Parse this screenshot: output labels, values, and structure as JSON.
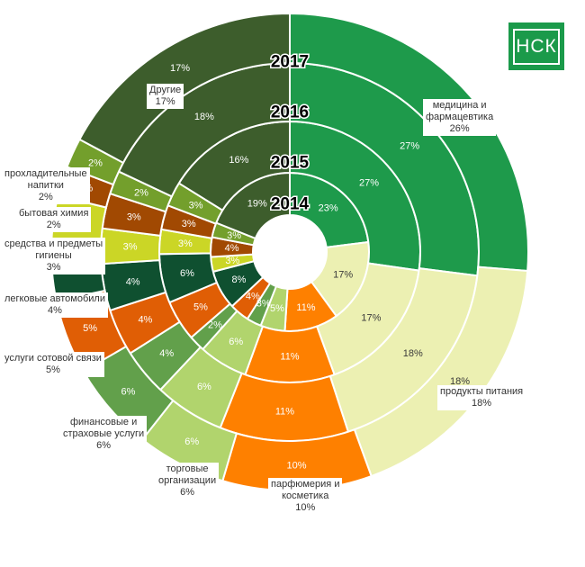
{
  "logo": {
    "text": "НСК"
  },
  "chart_data": {
    "type": "sunburst",
    "title": "",
    "years": [
      "2014",
      "2015",
      "2016",
      "2017"
    ],
    "categories": [
      {
        "name": "медицина и фармацевтика",
        "color": "#1e9a4b",
        "text": "light",
        "values": [
          23,
          27,
          27,
          26
        ]
      },
      {
        "name": "продукты питания",
        "color": "#ecf0b2",
        "text": "dark",
        "values": [
          17,
          17,
          18,
          18
        ]
      },
      {
        "name": "парфюмерия и косметика",
        "color": "#fe8000",
        "text": "light",
        "values": [
          11,
          11,
          11,
          10
        ]
      },
      {
        "name": "торговые организации",
        "color": "#b1d46d",
        "text": "light",
        "values": [
          5,
          6,
          6,
          6
        ]
      },
      {
        "name": "финансовые и страховые услуги",
        "color": "#62a04b",
        "text": "light",
        "values": [
          3,
          2,
          4,
          6
        ]
      },
      {
        "name": "услуги сотовой связи",
        "color": "#e05e05",
        "text": "light",
        "values": [
          4,
          5,
          4,
          5
        ]
      },
      {
        "name": "легковые автомобили",
        "color": "#0f5030",
        "text": "light",
        "values": [
          8,
          6,
          4,
          4
        ]
      },
      {
        "name": "средства и предметы гигиены",
        "color": "#cbd626",
        "text": "light",
        "values": [
          3,
          3,
          3,
          3
        ]
      },
      {
        "name": "бытовая химия",
        "color": "#a14902",
        "text": "light",
        "values": [
          4,
          3,
          3,
          2
        ]
      },
      {
        "name": "прохладительные напитки",
        "color": "#739f2c",
        "text": "light",
        "values": [
          3,
          3,
          2,
          2
        ]
      },
      {
        "name": "Другие",
        "color": "#3d5d2c",
        "text": "light",
        "values": [
          19,
          16,
          18,
          17
        ]
      }
    ],
    "outer_labels": [
      {
        "name": "медицина и фармацевтика",
        "lines": [
          "медицина и",
          "фармацевтика"
        ],
        "value": "26%"
      },
      {
        "name": "продукты питания",
        "lines": [
          "продукты питания"
        ],
        "value": "18%"
      },
      {
        "name": "парфюмерия и косметика",
        "lines": [
          "парфюмерия и",
          "косметика"
        ],
        "value": "10%"
      },
      {
        "name": "торговые организации",
        "lines": [
          "торговые",
          "организации"
        ],
        "value": "6%"
      },
      {
        "name": "финансовые и страховые услуги",
        "lines": [
          "финансовые и",
          "страховые услуги"
        ],
        "value": "6%"
      },
      {
        "name": "услуги сотовой связи",
        "lines": [
          "услуги сотовой связи"
        ],
        "value": "5%"
      },
      {
        "name": "легковые автомобили",
        "lines": [
          "легковые автомобили"
        ],
        "value": "4%"
      },
      {
        "name": "средства и предметы гигиены",
        "lines": [
          "средства и предметы",
          "гигиены"
        ],
        "value": "3%"
      },
      {
        "name": "бытовая химия",
        "lines": [
          "бытовая химия"
        ],
        "value": "2%"
      },
      {
        "name": "прохладительные напитки",
        "lines": [
          "прохладительные",
          "напитки"
        ],
        "value": "2%"
      },
      {
        "name": "Другие",
        "lines": [
          "Другие"
        ],
        "value": "17%"
      }
    ]
  }
}
